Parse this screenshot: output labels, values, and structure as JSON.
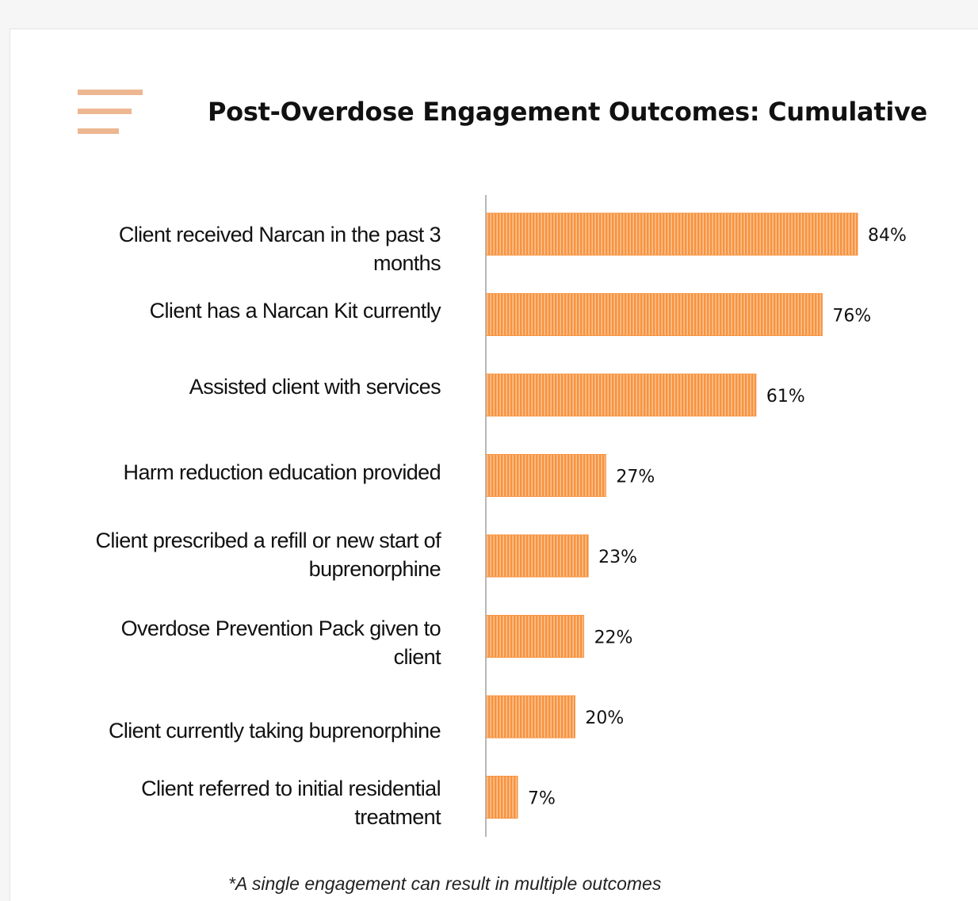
{
  "slide": {
    "title": "Post-Overdose Engagement Outcomes: Cumulative",
    "footnote": "*A single engagement can result in multiple outcomes",
    "icon": "menu-lines-icon"
  },
  "colors": {
    "bar": "#f7933f",
    "bar_hatch": "#fdd6b4",
    "icon": "#edb792",
    "axis": "#b8b8b8"
  },
  "chart_data": {
    "type": "bar",
    "orientation": "horizontal",
    "title": "Post-Overdose Engagement Outcomes: Cumulative",
    "categories": [
      "Client received Narcan in the past 3 months",
      "Client has a Narcan Kit currently",
      "Assisted client with services",
      "Harm reduction education provided",
      "Client prescribed a refill or new start of buprenorphine",
      "Overdose Prevention Pack given to client",
      "Client currently taking buprenorphine",
      "Client referred to initial residential treatment"
    ],
    "values": [
      84,
      76,
      61,
      27,
      23,
      22,
      20,
      7
    ],
    "data_labels": [
      "84%",
      "76%",
      "61%",
      "27%",
      "23%",
      "22%",
      "20%",
      "7%"
    ],
    "value_unit": "%",
    "xlim": [
      0,
      100
    ],
    "grid": false,
    "legend": "none"
  }
}
